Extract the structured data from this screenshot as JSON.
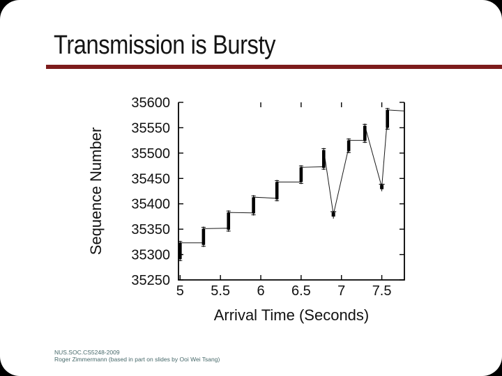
{
  "slide": {
    "title": "Transmission is Bursty",
    "accent_color": "#7d1c1c",
    "background_color": "#000000",
    "slide_color": "#ffffff",
    "footer": {
      "line1": "NUS.SOC.CS5248-2009",
      "line2": "Roger Zimmermann (based in part on slides by Ooi Wei Tsang)",
      "color": "#47696a"
    }
  },
  "chart_data": {
    "type": "line",
    "title": "",
    "xlabel": "Arrival Time (Seconds)",
    "ylabel": "Sequence Number",
    "xlim": [
      4.98,
      7.78
    ],
    "ylim": [
      35250,
      35600
    ],
    "xticks": [
      5,
      5.5,
      6,
      6.5,
      7,
      7.5
    ],
    "xtick_labels": [
      "5",
      "5.5",
      "6",
      "6.5",
      "7",
      "7.5"
    ],
    "yticks": [
      35250,
      35300,
      35350,
      35400,
      35450,
      35500,
      35550,
      35600
    ],
    "top_ticks": [
      6,
      6.5,
      7,
      7.5
    ],
    "grid": false,
    "legend": "none",
    "line_color": "#1a1a1a",
    "series": [
      {
        "name": "packet-sequence-trace",
        "points": [
          [
            5.0,
            35291
          ],
          [
            5.0,
            35323
          ],
          [
            5.28,
            35323
          ],
          [
            5.29,
            35319
          ],
          [
            5.29,
            35351
          ],
          [
            5.59,
            35352
          ],
          [
            5.6,
            35349
          ],
          [
            5.6,
            35383
          ],
          [
            5.9,
            35382
          ],
          [
            5.91,
            35381
          ],
          [
            5.91,
            35413
          ],
          [
            6.19,
            35411
          ],
          [
            6.2,
            35409
          ],
          [
            6.2,
            35443
          ],
          [
            6.49,
            35443
          ],
          [
            6.5,
            35443
          ],
          [
            6.5,
            35472
          ],
          [
            6.77,
            35473
          ],
          [
            6.78,
            35471
          ],
          [
            6.78,
            35506
          ],
          [
            6.9,
            35379
          ],
          [
            7.08,
            35504
          ],
          [
            7.09,
            35504
          ],
          [
            7.09,
            35525
          ],
          [
            7.28,
            35525
          ],
          [
            7.29,
            35524
          ],
          [
            7.29,
            35554
          ],
          [
            7.5,
            35433
          ],
          [
            7.56,
            35550
          ],
          [
            7.57,
            35550
          ],
          [
            7.57,
            35585
          ],
          [
            7.78,
            35583
          ]
        ]
      }
    ],
    "dip_markers": [
      [
        6.9,
        35379
      ],
      [
        7.5,
        35433
      ]
    ]
  }
}
